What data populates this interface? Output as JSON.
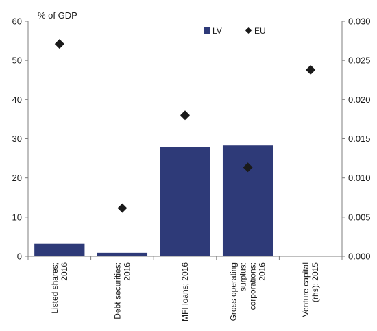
{
  "chart_data": {
    "type": "bar",
    "title": "",
    "unit_label": "% of GDP",
    "categories": [
      [
        "Listed shares;",
        "2016"
      ],
      [
        "Debt securities;",
        "2016"
      ],
      [
        "MFI loans; 2016"
      ],
      [
        "Gross operating",
        "surplus:",
        "corporations;",
        "2016"
      ],
      [
        "Venture capital",
        "(rhs); 2015"
      ]
    ],
    "series": [
      {
        "name": "LV",
        "kind": "bar",
        "axis": "left",
        "color": "#2e3a78",
        "values": [
          3.2,
          0.9,
          27.9,
          28.3,
          null
        ]
      },
      {
        "name": "EU",
        "kind": "marker",
        "marker": "diamond",
        "axis": "left",
        "color": "#1a1a1a",
        "values": [
          54.2,
          12.3,
          36.0,
          22.7,
          null
        ]
      },
      {
        "name": "EU (rhs)",
        "kind": "marker",
        "marker": "diamond",
        "axis": "right",
        "color": "#1a1a1a",
        "values": [
          null,
          null,
          null,
          null,
          0.0238
        ]
      }
    ],
    "y_left": {
      "ylim": [
        0,
        60
      ],
      "ticks": [
        "0",
        "10",
        "20",
        "30",
        "40",
        "50",
        "60"
      ]
    },
    "y_right": {
      "ylim": [
        0,
        0.03
      ],
      "ticks": [
        "0.000",
        "0.005",
        "0.010",
        "0.015",
        "0.020",
        "0.025",
        "0.030"
      ]
    },
    "legend": {
      "placement": "top-center",
      "items": [
        "LV",
        "EU"
      ]
    },
    "grid": false
  }
}
